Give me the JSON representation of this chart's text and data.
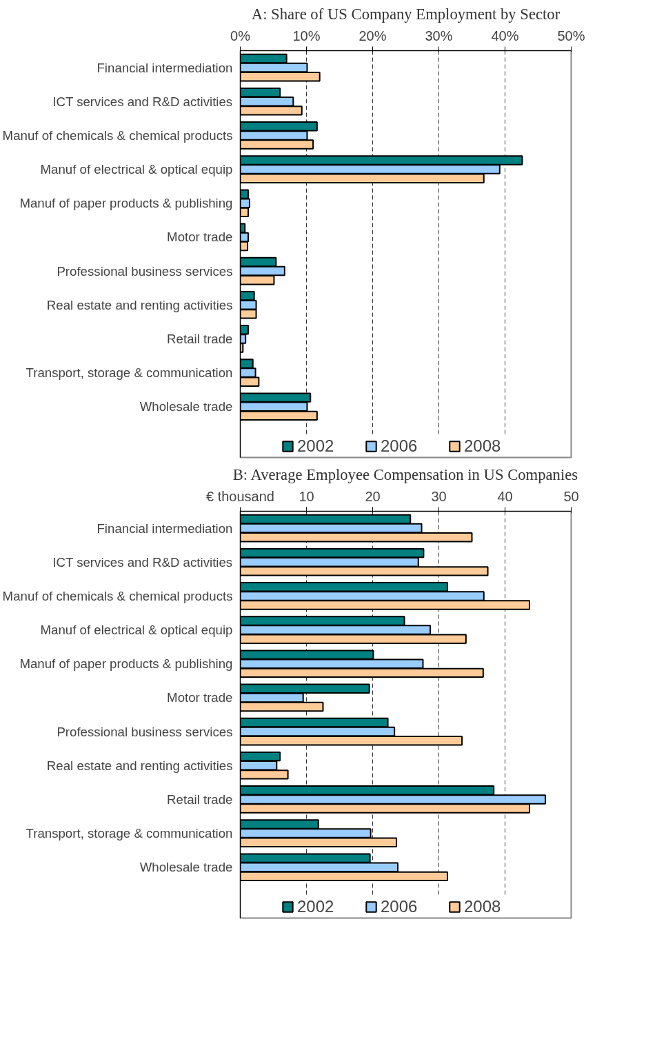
{
  "chart_data": [
    {
      "type": "bar",
      "orientation": "horizontal",
      "title": "A: Share of US Company Employment by Sector",
      "categories": [
        "Financial intermediation",
        "ICT services and R&D activities",
        "Manuf of chemicals & chemical products",
        "Manuf of electrical & optical equip",
        "Manuf of paper products & publishing",
        "Motor trade",
        "Professional business services",
        "Real estate and renting activities",
        "Retail trade",
        "Transport, storage & communication",
        "Wholesale trade"
      ],
      "series": [
        {
          "name": "2002",
          "color": "#008080",
          "values": [
            7.0,
            6.0,
            11.6,
            42.6,
            1.2,
            0.7,
            5.4,
            2.1,
            1.2,
            1.9,
            10.6
          ]
        },
        {
          "name": "2006",
          "color": "#99ccff",
          "values": [
            10.1,
            8.0,
            10.1,
            39.2,
            1.4,
            1.2,
            6.7,
            2.4,
            0.8,
            2.3,
            10.1
          ]
        },
        {
          "name": "2008",
          "color": "#ffcc99",
          "values": [
            12.0,
            9.3,
            11.0,
            36.8,
            1.2,
            1.1,
            5.1,
            2.4,
            0.4,
            2.8,
            11.6
          ]
        }
      ],
      "xlim": [
        0,
        50
      ],
      "xticks": [
        {
          "value": 0,
          "label": "0%"
        },
        {
          "value": 10,
          "label": "10%"
        },
        {
          "value": 20,
          "label": "20%"
        },
        {
          "value": 30,
          "label": "30%"
        },
        {
          "value": 40,
          "label": "40%"
        },
        {
          "value": 50,
          "label": "50%"
        }
      ],
      "grid": "x",
      "legend": "bottom"
    },
    {
      "type": "bar",
      "orientation": "horizontal",
      "title": "B: Average Employee Compensation in US Companies",
      "xlabel": "€ thousand",
      "categories": [
        "Financial intermediation",
        "ICT services and R&D activities",
        "Manuf of chemicals & chemical products",
        "Manuf of electrical & optical equip",
        "Manuf of paper products & publishing",
        "Motor trade",
        "Professional business services",
        "Real estate and renting activities",
        "Retail trade",
        "Transport, storage & communication",
        "Wholesale trade"
      ],
      "series": [
        {
          "name": "2002",
          "color": "#008080",
          "values": [
            25.7,
            27.7,
            31.3,
            24.8,
            20.1,
            19.5,
            22.3,
            6.0,
            38.3,
            11.8,
            19.6
          ]
        },
        {
          "name": "2006",
          "color": "#99ccff",
          "values": [
            27.4,
            26.9,
            36.8,
            28.7,
            27.6,
            9.5,
            23.3,
            5.5,
            46.1,
            19.7,
            23.8
          ]
        },
        {
          "name": "2008",
          "color": "#ffcc99",
          "values": [
            35.0,
            37.4,
            43.7,
            34.1,
            36.7,
            12.5,
            33.5,
            7.2,
            43.7,
            23.6,
            31.3
          ]
        }
      ],
      "xlim": [
        0,
        50
      ],
      "xticks": [
        {
          "value": 0,
          "label": null
        },
        10,
        20,
        30,
        40,
        50
      ],
      "grid": "x",
      "legend": "bottom"
    }
  ]
}
